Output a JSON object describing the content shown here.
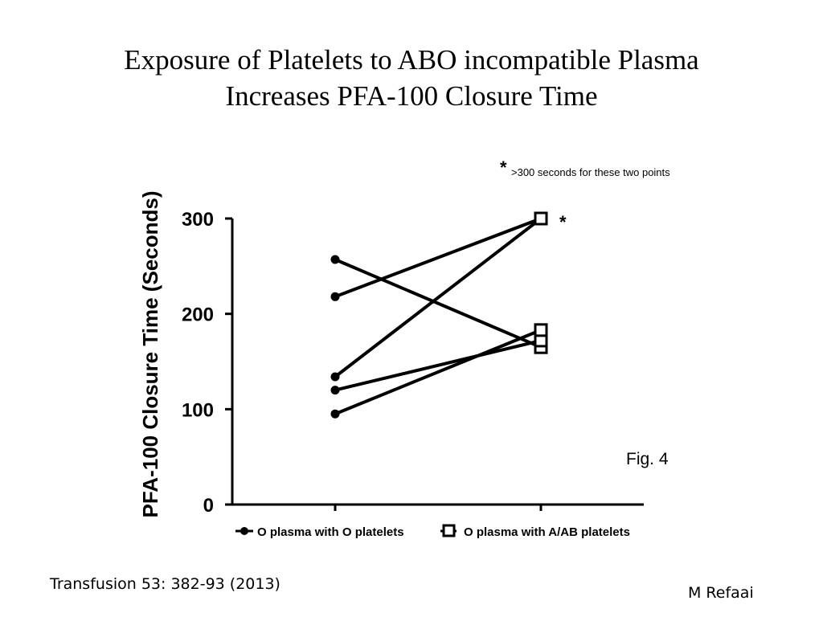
{
  "slide": {
    "title_line1": "Exposure of Platelets to ABO incompatible Plasma",
    "title_line2": "Increases PFA-100 Closure Time",
    "citation": "Transfusion 53: 382-93 (2013)",
    "author": "M Refaai"
  },
  "chart_data": {
    "type": "line",
    "ylabel": "PFA-100 Closure Time (Seconds)",
    "ylim": [
      0,
      300
    ],
    "yticks": [
      0,
      100,
      200,
      300
    ],
    "categories": [
      "O plasma with O platelets",
      "O plasma with A/AB platelets"
    ],
    "paired_series": [
      {
        "values": [
          257,
          165
        ]
      },
      {
        "values": [
          218,
          300
        ]
      },
      {
        "values": [
          134,
          300
        ]
      },
      {
        "values": [
          120,
          172
        ]
      },
      {
        "values": [
          95,
          183
        ]
      }
    ],
    "legend": [
      {
        "label": "O plasma with O platelets",
        "marker": "filled-circle"
      },
      {
        "label": "O plasma with A/AB platelets",
        "marker": "open-square"
      }
    ],
    "legend_position": "bottom",
    "annotations": {
      "asterisk": "*",
      "note": ">300 seconds for these two points",
      "figure_label": "Fig. 4"
    },
    "colors": {
      "line": "#000000",
      "background": "#ffffff"
    }
  }
}
